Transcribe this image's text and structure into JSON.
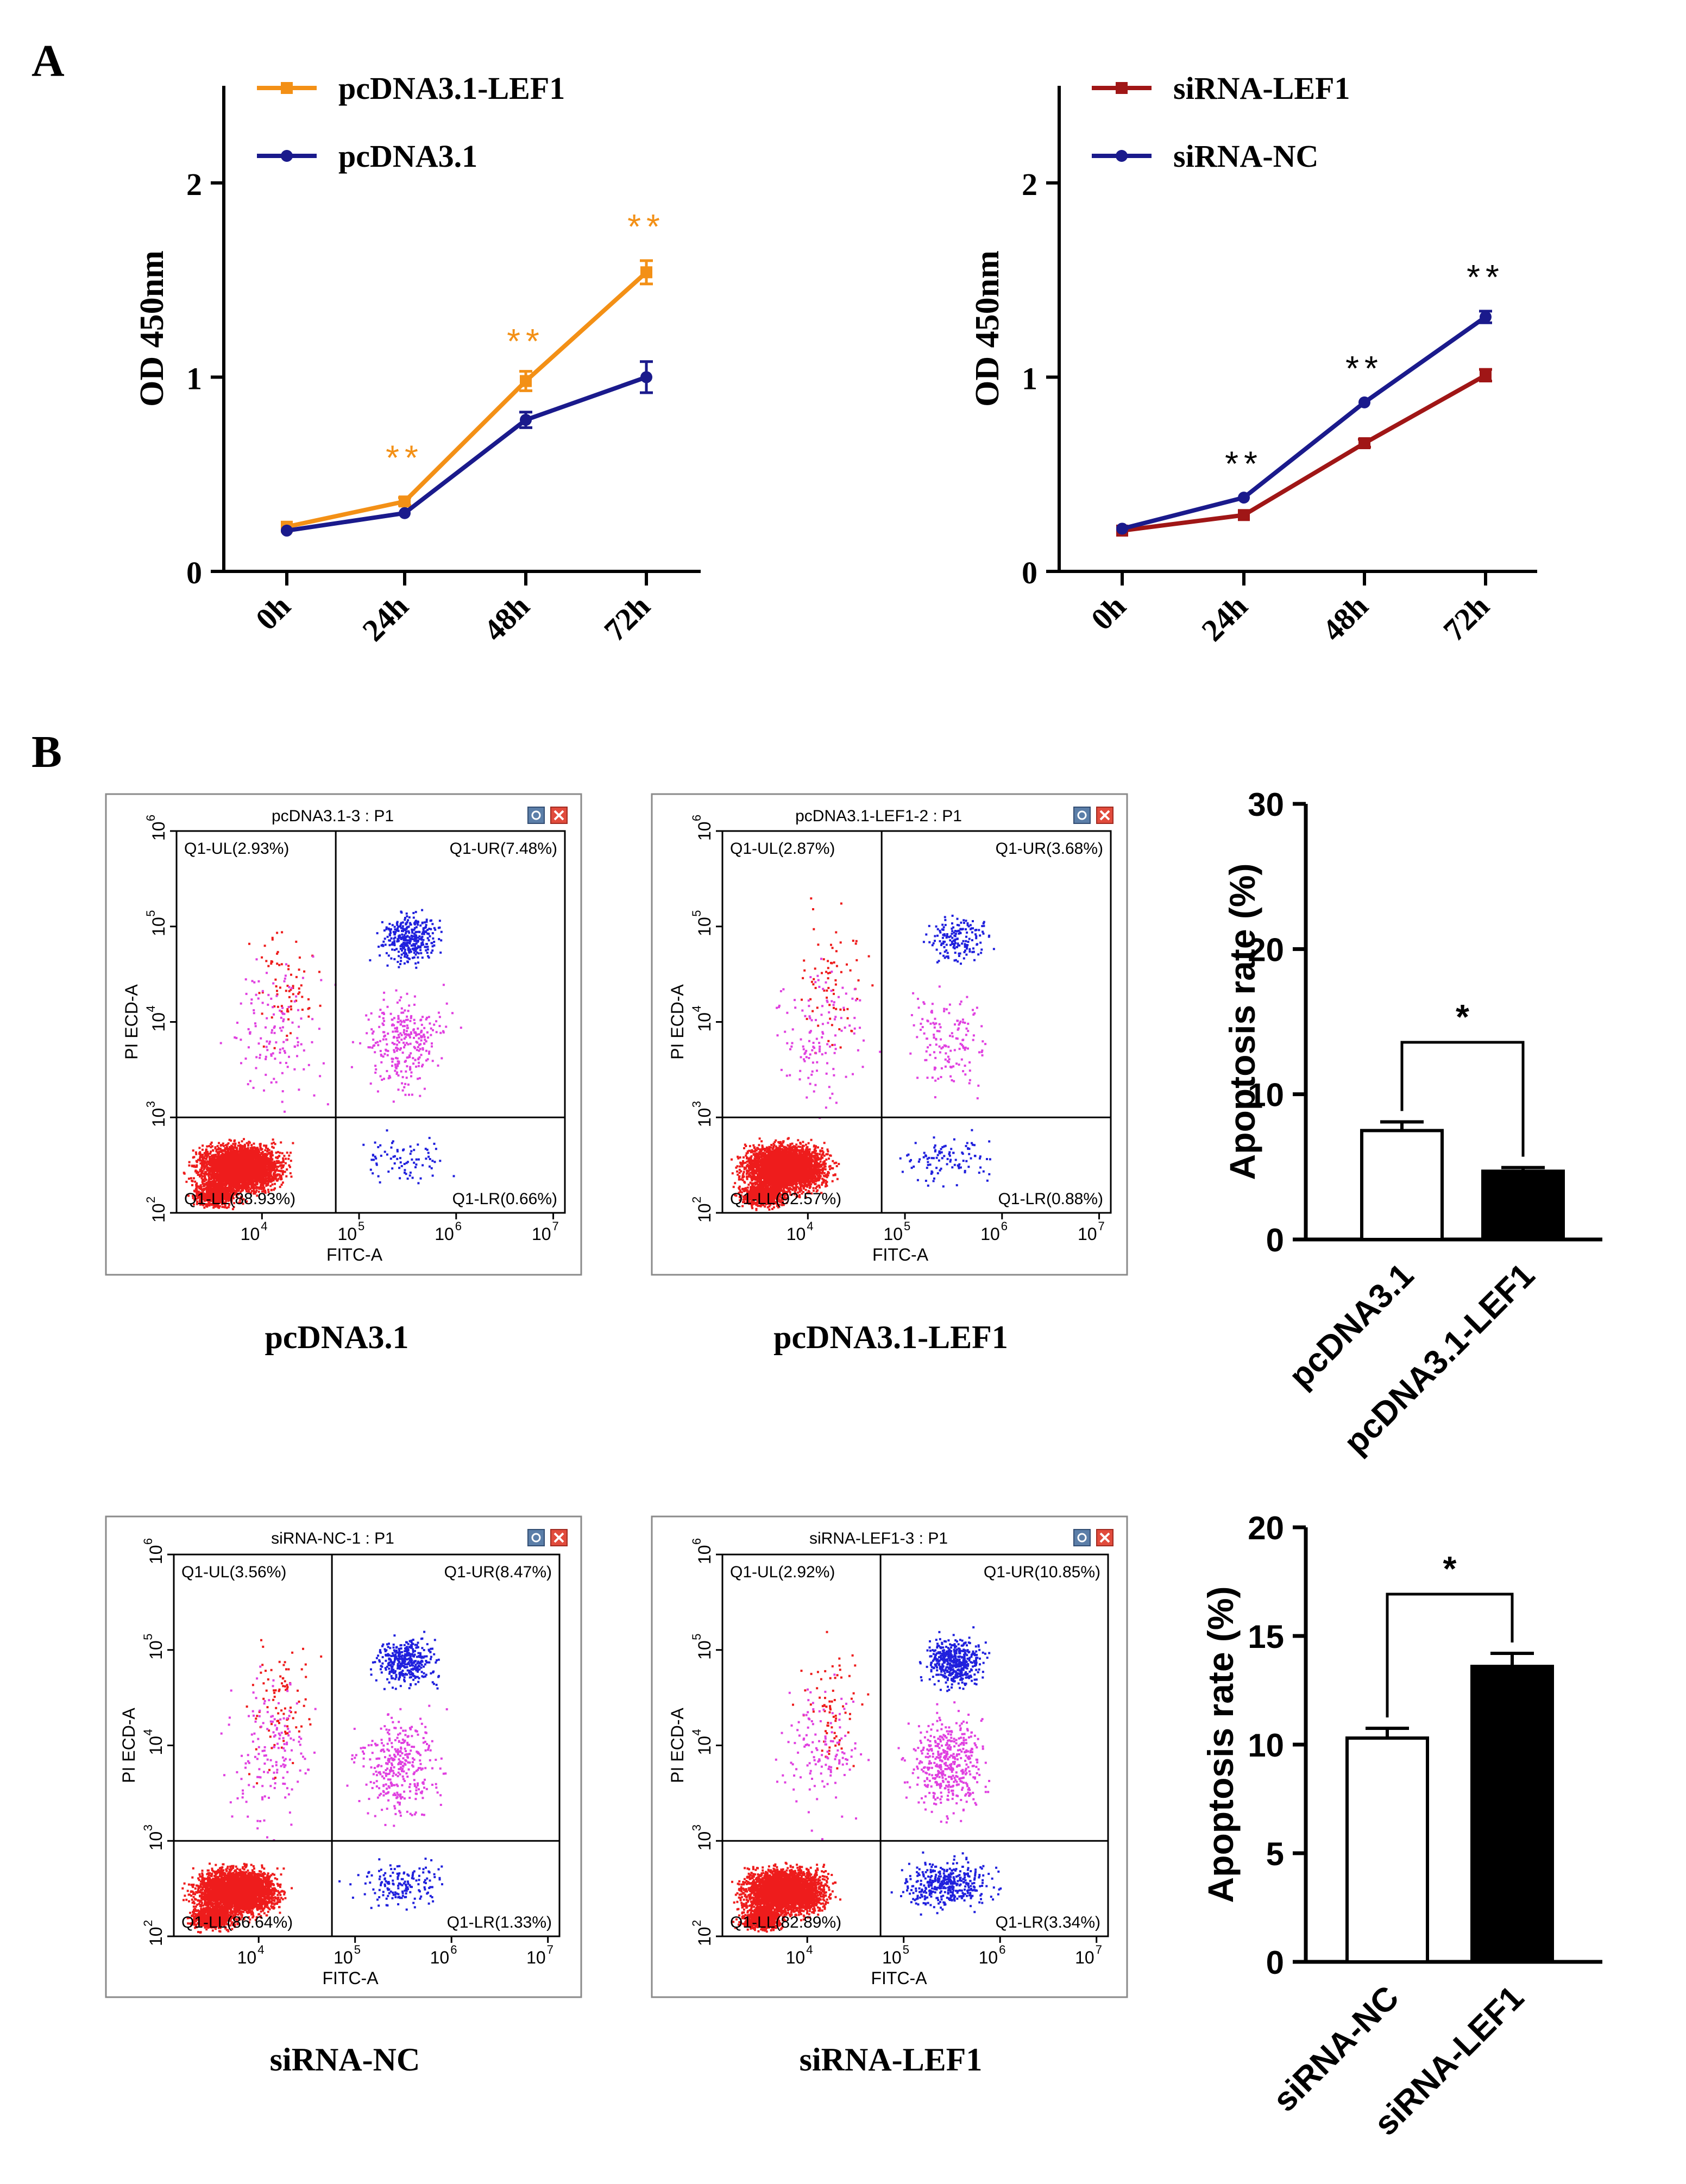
{
  "panel_labels": {
    "a": "A",
    "b": "B"
  },
  "colors": {
    "orange": "#f39016",
    "navy": "#1a1a8c",
    "darkred": "#a01616",
    "scatter_red": "#ee1c1c",
    "scatter_magenta": "#e040e0",
    "scatter_blue": "#2020dd",
    "black": "#000000"
  },
  "chart_data": [
    {
      "type": "line",
      "id": "A-left",
      "ylabel": "OD 450nm",
      "xlabel": "",
      "categories": [
        "0h",
        "24h",
        "48h",
        "72h"
      ],
      "yticks": [
        "0",
        "1",
        "2"
      ],
      "ylim": [
        0,
        2.5
      ],
      "series": [
        {
          "name": "pcDNA3.1-LEF1",
          "marker": "square",
          "color": "#f39016",
          "values": [
            0.23,
            0.36,
            0.98,
            1.54
          ],
          "errors": [
            0.01,
            0.02,
            0.05,
            0.06
          ]
        },
        {
          "name": "pcDNA3.1",
          "marker": "circle",
          "color": "#1a1a8c",
          "values": [
            0.21,
            0.3,
            0.78,
            1.0
          ],
          "errors": [
            0.01,
            0.01,
            0.04,
            0.08
          ]
        }
      ],
      "annotations": [
        {
          "category": "24h",
          "text": "**",
          "color": "#f39016",
          "y": 0.58
        },
        {
          "category": "48h",
          "text": "**",
          "color": "#f39016",
          "y": 1.18
        },
        {
          "category": "72h",
          "text": "**",
          "color": "#f39016",
          "y": 1.77
        }
      ]
    },
    {
      "type": "line",
      "id": "A-right",
      "ylabel": "OD 450nm",
      "xlabel": "",
      "categories": [
        "0h",
        "24h",
        "48h",
        "72h"
      ],
      "yticks": [
        "0",
        "1",
        "2"
      ],
      "ylim": [
        0,
        2.5
      ],
      "series": [
        {
          "name": "siRNA-LEF1",
          "marker": "square",
          "color": "#a01616",
          "values": [
            0.21,
            0.29,
            0.66,
            1.01
          ],
          "errors": [
            0.01,
            0.01,
            0.02,
            0.03
          ]
        },
        {
          "name": "siRNA-NC",
          "marker": "circle",
          "color": "#1a1a8c",
          "values": [
            0.22,
            0.38,
            0.87,
            1.31
          ],
          "errors": [
            0.01,
            0.01,
            0.01,
            0.03
          ]
        }
      ],
      "annotations": [
        {
          "category": "24h",
          "text": "**",
          "color": "#000000",
          "y": 0.55
        },
        {
          "category": "48h",
          "text": "**",
          "color": "#000000",
          "y": 1.04
        },
        {
          "category": "72h",
          "text": "**",
          "color": "#000000",
          "y": 1.51
        }
      ]
    },
    {
      "type": "bar",
      "id": "B-top-bar",
      "ylabel": "Apoptosis rate (%)",
      "categories": [
        "pcDNA3.1",
        "pcDNA3.1-LEF1"
      ],
      "values": [
        7.5,
        4.7
      ],
      "errors": [
        0.6,
        0.25
      ],
      "fills": [
        "#ffffff",
        "#000000"
      ],
      "yticks": [
        "0",
        "10",
        "20",
        "30"
      ],
      "ylim": [
        0,
        30
      ],
      "significance": "*"
    },
    {
      "type": "bar",
      "id": "B-bottom-bar",
      "ylabel": "Apoptosis rate (%)",
      "categories": [
        "siRNA-NC",
        "siRNA-LEF1"
      ],
      "values": [
        10.3,
        13.6
      ],
      "errors": [
        0.45,
        0.6
      ],
      "fills": [
        "#ffffff",
        "#000000"
      ],
      "yticks": [
        "0",
        "5",
        "10",
        "15",
        "20"
      ],
      "ylim": [
        0,
        20
      ],
      "significance": "*"
    },
    {
      "type": "scatter",
      "id": "flow-pcDNA3.1",
      "title": "pcDNA3.1-3 : P1",
      "caption": "pcDNA3.1",
      "xlabel": "FITC-A",
      "ylabel": "PI ECD-A",
      "quadrants": {
        "UL": "Q1-UL(2.93%)",
        "UR": "Q1-UR(7.48%)",
        "LL": "Q1-LL(88.93%)",
        "LR": "Q1-LR(0.66%)"
      },
      "percents": {
        "UL": 2.93,
        "UR": 7.48,
        "LL": 88.93,
        "LR": 0.66
      }
    },
    {
      "type": "scatter",
      "id": "flow-pcDNA3.1-LEF1",
      "title": "pcDNA3.1-LEF1-2 : P1",
      "caption": "pcDNA3.1-LEF1",
      "xlabel": "FITC-A",
      "ylabel": "PI ECD-A",
      "quadrants": {
        "UL": "Q1-UL(2.87%)",
        "UR": "Q1-UR(3.68%)",
        "LL": "Q1-LL(92.57%)",
        "LR": "Q1-LR(0.88%)"
      },
      "percents": {
        "UL": 2.87,
        "UR": 3.68,
        "LL": 92.57,
        "LR": 0.88
      }
    },
    {
      "type": "scatter",
      "id": "flow-siRNA-NC",
      "title": "siRNA-NC-1 : P1",
      "caption": "siRNA-NC",
      "xlabel": "FITC-A",
      "ylabel": "PI ECD-A",
      "quadrants": {
        "UL": "Q1-UL(3.56%)",
        "UR": "Q1-UR(8.47%)",
        "LL": "Q1-LL(86.64%)",
        "LR": "Q1-LR(1.33%)"
      },
      "percents": {
        "UL": 3.56,
        "UR": 8.47,
        "LL": 86.64,
        "LR": 1.33
      }
    },
    {
      "type": "scatter",
      "id": "flow-siRNA-LEF1",
      "title": "siRNA-LEF1-3 : P1",
      "caption": "siRNA-LEF1",
      "xlabel": "FITC-A",
      "ylabel": "PI ECD-A",
      "quadrants": {
        "UL": "Q1-UL(2.92%)",
        "UR": "Q1-UR(10.85%)",
        "LL": "Q1-LL(82.89%)",
        "LR": "Q1-LR(3.34%)"
      },
      "percents": {
        "UL": 2.92,
        "UR": 10.85,
        "LL": 82.89,
        "LR": 3.34
      }
    }
  ],
  "flow_axes": {
    "x_ticks": [
      {
        "base": "10",
        "exp": "4"
      },
      {
        "base": "10",
        "exp": "5"
      },
      {
        "base": "10",
        "exp": "6"
      },
      {
        "base": "10",
        "exp": "7"
      }
    ],
    "y_ticks": [
      {
        "base": "10",
        "exp": "2"
      },
      {
        "base": "10",
        "exp": "3"
      },
      {
        "base": "10",
        "exp": "4"
      },
      {
        "base": "10",
        "exp": "5"
      },
      {
        "base": "10",
        "exp": "6"
      }
    ]
  }
}
